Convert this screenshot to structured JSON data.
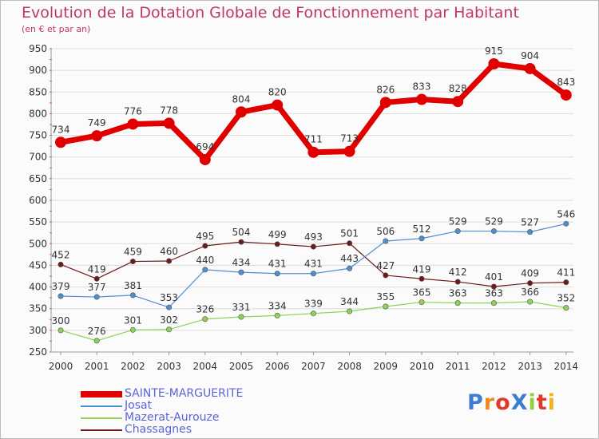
{
  "title": "Evolution de la Dotation Globale de Fonctionnement par Habitant",
  "subtitle": "(en € et par an)",
  "chart_data": {
    "type": "line",
    "title": "Evolution de la Dotation Globale de Fonctionnement par Habitant",
    "subtitle": "(en € et par an)",
    "x": [
      "2000",
      "2001",
      "2002",
      "2003",
      "2004",
      "2005",
      "2006",
      "2007",
      "2008",
      "2009",
      "2010",
      "2011",
      "2012",
      "2013",
      "2014"
    ],
    "ylim": [
      250,
      950
    ],
    "yticks": [
      250,
      300,
      350,
      400,
      450,
      500,
      550,
      600,
      650,
      700,
      750,
      800,
      850,
      900,
      950
    ],
    "grid": true,
    "legend_position": "bottom-left",
    "series": [
      {
        "name": "SAINTE-MARGUERITE",
        "color": "#e00000",
        "values": [
          734,
          749,
          776,
          778,
          694,
          804,
          820,
          711,
          713,
          826,
          833,
          828,
          915,
          904,
          843
        ]
      },
      {
        "name": "Josat",
        "color": "#4f8fd0",
        "values": [
          379,
          377,
          381,
          353,
          440,
          434,
          431,
          431,
          443,
          506,
          512,
          529,
          529,
          527,
          546
        ]
      },
      {
        "name": "Mazerat-Aurouze",
        "color": "#8fd256",
        "values": [
          300,
          276,
          301,
          302,
          326,
          331,
          334,
          339,
          344,
          355,
          365,
          363,
          363,
          366,
          352
        ]
      },
      {
        "name": "Chassagnes",
        "color": "#6e1a1a",
        "values": [
          452,
          419,
          459,
          460,
          495,
          504,
          499,
          493,
          501,
          427,
          419,
          412,
          401,
          409,
          411
        ]
      }
    ]
  },
  "logo": {
    "text": "ProXiti",
    "colors": [
      "#3a7fd0",
      "#f08a1c",
      "#e03a2a",
      "#3a7fd0",
      "#8fcf3c",
      "#e03a2a",
      "#f0b21c"
    ]
  }
}
